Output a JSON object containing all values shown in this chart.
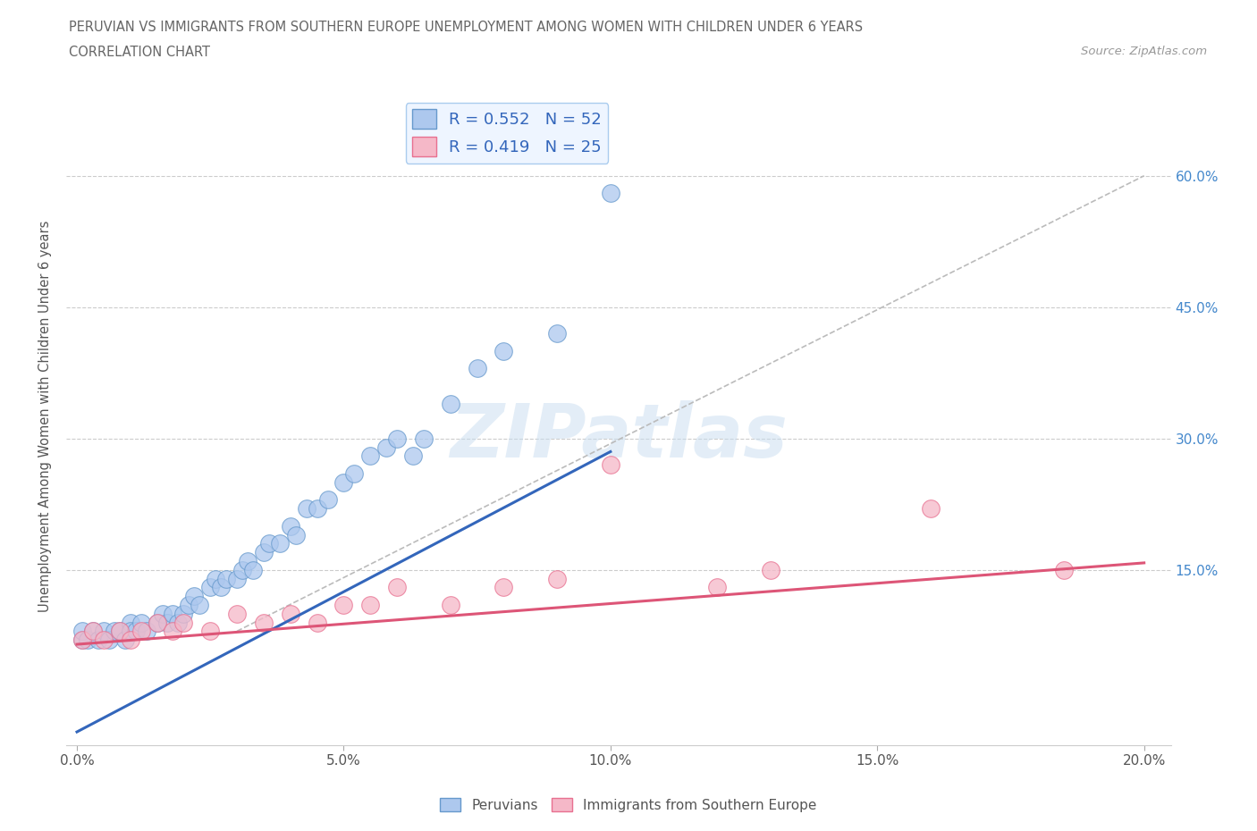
{
  "title_line1": "PERUVIAN VS IMMIGRANTS FROM SOUTHERN EUROPE UNEMPLOYMENT AMONG WOMEN WITH CHILDREN UNDER 6 YEARS",
  "title_line2": "CORRELATION CHART",
  "source": "Source: ZipAtlas.com",
  "ylabel": "Unemployment Among Women with Children Under 6 years",
  "xlim": [
    -0.002,
    0.205
  ],
  "ylim": [
    -0.05,
    0.7
  ],
  "xtick_labels": [
    "0.0%",
    "5.0%",
    "10.0%",
    "15.0%",
    "20.0%"
  ],
  "xtick_vals": [
    0.0,
    0.05,
    0.1,
    0.15,
    0.2
  ],
  "ytick_labels": [
    "15.0%",
    "30.0%",
    "45.0%",
    "60.0%"
  ],
  "ytick_vals": [
    0.15,
    0.3,
    0.45,
    0.6
  ],
  "peruvian_color": "#adc8ee",
  "southern_europe_color": "#f5b8c8",
  "peruvian_edge_color": "#6699cc",
  "southern_europe_edge_color": "#e87090",
  "peruvian_line_color": "#3366bb",
  "southern_europe_line_color": "#dd5577",
  "dashed_line_color": "#bbbbbb",
  "R_peruvian": 0.552,
  "N_peruvian": 52,
  "R_southern": 0.419,
  "N_southern": 25,
  "watermark": "ZIPatlas",
  "legend_label_1": "Peruvians",
  "legend_label_2": "Immigrants from Southern Europe",
  "peruvian_x": [
    0.001,
    0.001,
    0.002,
    0.003,
    0.004,
    0.005,
    0.006,
    0.007,
    0.008,
    0.009,
    0.01,
    0.01,
    0.011,
    0.012,
    0.013,
    0.015,
    0.016,
    0.017,
    0.018,
    0.019,
    0.02,
    0.021,
    0.022,
    0.023,
    0.025,
    0.026,
    0.027,
    0.028,
    0.03,
    0.031,
    0.032,
    0.033,
    0.035,
    0.036,
    0.038,
    0.04,
    0.041,
    0.043,
    0.045,
    0.047,
    0.05,
    0.052,
    0.055,
    0.058,
    0.06,
    0.063,
    0.065,
    0.07,
    0.075,
    0.08,
    0.09,
    0.1
  ],
  "peruvian_y": [
    0.07,
    0.08,
    0.07,
    0.08,
    0.07,
    0.08,
    0.07,
    0.08,
    0.08,
    0.07,
    0.09,
    0.08,
    0.08,
    0.09,
    0.08,
    0.09,
    0.1,
    0.09,
    0.1,
    0.09,
    0.1,
    0.11,
    0.12,
    0.11,
    0.13,
    0.14,
    0.13,
    0.14,
    0.14,
    0.15,
    0.16,
    0.15,
    0.17,
    0.18,
    0.18,
    0.2,
    0.19,
    0.22,
    0.22,
    0.23,
    0.25,
    0.26,
    0.28,
    0.29,
    0.3,
    0.28,
    0.3,
    0.34,
    0.38,
    0.4,
    0.42,
    0.58
  ],
  "southern_x": [
    0.001,
    0.003,
    0.005,
    0.008,
    0.01,
    0.012,
    0.015,
    0.018,
    0.02,
    0.025,
    0.03,
    0.035,
    0.04,
    0.045,
    0.05,
    0.055,
    0.06,
    0.07,
    0.08,
    0.09,
    0.1,
    0.12,
    0.13,
    0.16,
    0.185
  ],
  "southern_y": [
    0.07,
    0.08,
    0.07,
    0.08,
    0.07,
    0.08,
    0.09,
    0.08,
    0.09,
    0.08,
    0.1,
    0.09,
    0.1,
    0.09,
    0.11,
    0.11,
    0.13,
    0.11,
    0.13,
    0.14,
    0.27,
    0.13,
    0.15,
    0.22,
    0.15
  ],
  "blue_line_x0": 0.0,
  "blue_line_y0": -0.035,
  "blue_line_x1": 0.1,
  "blue_line_y1": 0.285,
  "pink_line_x0": 0.0,
  "pink_line_y0": 0.065,
  "pink_line_x1": 0.2,
  "pink_line_y1": 0.158,
  "dash_line_x0": 0.03,
  "dash_line_y0": 0.08,
  "dash_line_x1": 0.2,
  "dash_line_y1": 0.6
}
